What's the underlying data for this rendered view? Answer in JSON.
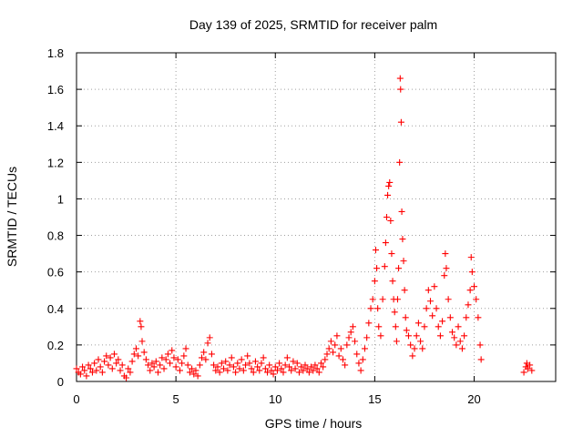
{
  "chart_data": {
    "type": "scatter",
    "title": "Day 139 of 2025, SRMTID for receiver palm",
    "xlabel": "GPS time / hours",
    "ylabel": "SRMTID / TECUs",
    "xlim": [
      0,
      24.1
    ],
    "ylim": [
      0,
      1.8
    ],
    "xticks": [
      0,
      5,
      10,
      15,
      20
    ],
    "xtick_labels": [
      "0",
      "5",
      "10",
      "15",
      "20"
    ],
    "yticks": [
      0,
      0.2,
      0.4,
      0.6,
      0.8,
      1.0,
      1.2,
      1.4,
      1.6,
      1.8
    ],
    "ytick_labels": [
      "0",
      "0.2",
      "0.4",
      "0.6",
      "0.8",
      "1",
      "1.2",
      "1.4",
      "1.6",
      "1.8"
    ],
    "grid": true,
    "marker": "+",
    "color": "#ff0000",
    "series": [
      {
        "name": "SRMTID",
        "points": [
          [
            0.0,
            0.07
          ],
          [
            0.1,
            0.05
          ],
          [
            0.2,
            0.04
          ],
          [
            0.3,
            0.08
          ],
          [
            0.4,
            0.06
          ],
          [
            0.5,
            0.03
          ],
          [
            0.6,
            0.09
          ],
          [
            0.7,
            0.07
          ],
          [
            0.8,
            0.05
          ],
          [
            0.9,
            0.1
          ],
          [
            1.0,
            0.06
          ],
          [
            1.1,
            0.12
          ],
          [
            1.2,
            0.08
          ],
          [
            1.3,
            0.05
          ],
          [
            1.4,
            0.11
          ],
          [
            1.5,
            0.14
          ],
          [
            1.6,
            0.09
          ],
          [
            1.7,
            0.13
          ],
          [
            1.8,
            0.07
          ],
          [
            1.9,
            0.15
          ],
          [
            2.0,
            0.1
          ],
          [
            2.1,
            0.12
          ],
          [
            2.2,
            0.06
          ],
          [
            2.3,
            0.09
          ],
          [
            2.4,
            0.03
          ],
          [
            2.5,
            0.02
          ],
          [
            2.6,
            0.07
          ],
          [
            2.7,
            0.05
          ],
          [
            2.8,
            0.11
          ],
          [
            2.9,
            0.15
          ],
          [
            3.0,
            0.18
          ],
          [
            3.1,
            0.14
          ],
          [
            3.2,
            0.33
          ],
          [
            3.25,
            0.3
          ],
          [
            3.3,
            0.22
          ],
          [
            3.4,
            0.16
          ],
          [
            3.5,
            0.12
          ],
          [
            3.6,
            0.09
          ],
          [
            3.7,
            0.06
          ],
          [
            3.8,
            0.1
          ],
          [
            3.9,
            0.08
          ],
          [
            4.0,
            0.11
          ],
          [
            4.1,
            0.05
          ],
          [
            4.2,
            0.09
          ],
          [
            4.3,
            0.13
          ],
          [
            4.4,
            0.07
          ],
          [
            4.5,
            0.12
          ],
          [
            4.6,
            0.15
          ],
          [
            4.7,
            0.1
          ],
          [
            4.8,
            0.17
          ],
          [
            4.9,
            0.13
          ],
          [
            5.0,
            0.08
          ],
          [
            5.1,
            0.12
          ],
          [
            5.2,
            0.06
          ],
          [
            5.3,
            0.1
          ],
          [
            5.4,
            0.14
          ],
          [
            5.5,
            0.18
          ],
          [
            5.6,
            0.09
          ],
          [
            5.7,
            0.05
          ],
          [
            5.8,
            0.07
          ],
          [
            5.9,
            0.04
          ],
          [
            6.0,
            0.06
          ],
          [
            6.1,
            0.03
          ],
          [
            6.2,
            0.09
          ],
          [
            6.3,
            0.13
          ],
          [
            6.4,
            0.16
          ],
          [
            6.5,
            0.12
          ],
          [
            6.6,
            0.21
          ],
          [
            6.7,
            0.24
          ],
          [
            6.8,
            0.15
          ],
          [
            6.9,
            0.09
          ],
          [
            7.0,
            0.06
          ],
          [
            7.1,
            0.08
          ],
          [
            7.2,
            0.05
          ],
          [
            7.3,
            0.1
          ],
          [
            7.4,
            0.07
          ],
          [
            7.5,
            0.11
          ],
          [
            7.6,
            0.06
          ],
          [
            7.7,
            0.09
          ],
          [
            7.8,
            0.13
          ],
          [
            7.9,
            0.08
          ],
          [
            8.0,
            0.05
          ],
          [
            8.1,
            0.1
          ],
          [
            8.2,
            0.07
          ],
          [
            8.3,
            0.12
          ],
          [
            8.4,
            0.06
          ],
          [
            8.5,
            0.09
          ],
          [
            8.6,
            0.14
          ],
          [
            8.7,
            0.1
          ],
          [
            8.8,
            0.07
          ],
          [
            8.9,
            0.05
          ],
          [
            9.0,
            0.11
          ],
          [
            9.1,
            0.08
          ],
          [
            9.2,
            0.06
          ],
          [
            9.3,
            0.1
          ],
          [
            9.4,
            0.13
          ],
          [
            9.5,
            0.07
          ],
          [
            9.6,
            0.05
          ],
          [
            9.7,
            0.09
          ],
          [
            9.8,
            0.06
          ],
          [
            9.9,
            0.04
          ],
          [
            10.0,
            0.08
          ],
          [
            10.1,
            0.06
          ],
          [
            10.2,
            0.1
          ],
          [
            10.3,
            0.07
          ],
          [
            10.4,
            0.05
          ],
          [
            10.5,
            0.09
          ],
          [
            10.6,
            0.13
          ],
          [
            10.7,
            0.08
          ],
          [
            10.8,
            0.06
          ],
          [
            10.9,
            0.11
          ],
          [
            11.0,
            0.07
          ],
          [
            11.1,
            0.1
          ],
          [
            11.2,
            0.05
          ],
          [
            11.3,
            0.08
          ],
          [
            11.4,
            0.06
          ],
          [
            11.5,
            0.09
          ],
          [
            11.6,
            0.07
          ],
          [
            11.7,
            0.05
          ],
          [
            11.8,
            0.08
          ],
          [
            11.9,
            0.06
          ],
          [
            12.0,
            0.09
          ],
          [
            12.1,
            0.07
          ],
          [
            12.2,
            0.05
          ],
          [
            12.3,
            0.1
          ],
          [
            12.4,
            0.08
          ],
          [
            12.5,
            0.12
          ],
          [
            12.6,
            0.15
          ],
          [
            12.7,
            0.18
          ],
          [
            12.8,
            0.22
          ],
          [
            12.9,
            0.16
          ],
          [
            13.0,
            0.2
          ],
          [
            13.1,
            0.25
          ],
          [
            13.2,
            0.14
          ],
          [
            13.3,
            0.18
          ],
          [
            13.4,
            0.12
          ],
          [
            13.5,
            0.09
          ],
          [
            13.6,
            0.2
          ],
          [
            13.7,
            0.24
          ],
          [
            13.8,
            0.27
          ],
          [
            13.9,
            0.3
          ],
          [
            14.0,
            0.22
          ],
          [
            14.1,
            0.15
          ],
          [
            14.2,
            0.1
          ],
          [
            14.3,
            0.06
          ],
          [
            14.4,
            0.12
          ],
          [
            14.5,
            0.18
          ],
          [
            14.6,
            0.24
          ],
          [
            14.7,
            0.32
          ],
          [
            14.8,
            0.4
          ],
          [
            14.9,
            0.45
          ],
          [
            15.0,
            0.55
          ],
          [
            15.05,
            0.72
          ],
          [
            15.1,
            0.62
          ],
          [
            15.15,
            0.4
          ],
          [
            15.2,
            0.3
          ],
          [
            15.3,
            0.25
          ],
          [
            15.4,
            0.45
          ],
          [
            15.5,
            0.63
          ],
          [
            15.55,
            0.76
          ],
          [
            15.6,
            0.9
          ],
          [
            15.65,
            1.02
          ],
          [
            15.7,
            1.07
          ],
          [
            15.75,
            1.09
          ],
          [
            15.8,
            0.88
          ],
          [
            15.85,
            0.7
          ],
          [
            15.9,
            0.55
          ],
          [
            15.95,
            0.45
          ],
          [
            16.0,
            0.38
          ],
          [
            16.05,
            0.3
          ],
          [
            16.1,
            0.22
          ],
          [
            16.15,
            0.45
          ],
          [
            16.2,
            0.62
          ],
          [
            16.25,
            1.2
          ],
          [
            16.28,
            1.66
          ],
          [
            16.3,
            1.6
          ],
          [
            16.33,
            1.42
          ],
          [
            16.36,
            0.93
          ],
          [
            16.4,
            0.78
          ],
          [
            16.45,
            0.66
          ],
          [
            16.5,
            0.5
          ],
          [
            16.55,
            0.35
          ],
          [
            16.6,
            0.28
          ],
          [
            16.7,
            0.25
          ],
          [
            16.8,
            0.2
          ],
          [
            16.9,
            0.14
          ],
          [
            17.0,
            0.18
          ],
          [
            17.1,
            0.25
          ],
          [
            17.2,
            0.32
          ],
          [
            17.3,
            0.22
          ],
          [
            17.4,
            0.18
          ],
          [
            17.5,
            0.3
          ],
          [
            17.6,
            0.4
          ],
          [
            17.7,
            0.5
          ],
          [
            17.8,
            0.44
          ],
          [
            17.9,
            0.36
          ],
          [
            18.0,
            0.52
          ],
          [
            18.1,
            0.4
          ],
          [
            18.2,
            0.3
          ],
          [
            18.3,
            0.25
          ],
          [
            18.4,
            0.33
          ],
          [
            18.5,
            0.58
          ],
          [
            18.55,
            0.7
          ],
          [
            18.6,
            0.62
          ],
          [
            18.7,
            0.45
          ],
          [
            18.8,
            0.35
          ],
          [
            18.9,
            0.27
          ],
          [
            19.0,
            0.24
          ],
          [
            19.1,
            0.2
          ],
          [
            19.2,
            0.3
          ],
          [
            19.3,
            0.22
          ],
          [
            19.4,
            0.18
          ],
          [
            19.5,
            0.25
          ],
          [
            19.6,
            0.35
          ],
          [
            19.7,
            0.42
          ],
          [
            19.8,
            0.5
          ],
          [
            19.85,
            0.68
          ],
          [
            19.9,
            0.6
          ],
          [
            20.0,
            0.52
          ],
          [
            20.1,
            0.45
          ],
          [
            20.2,
            0.35
          ],
          [
            20.3,
            0.2
          ],
          [
            20.35,
            0.12
          ],
          [
            22.5,
            0.05
          ],
          [
            22.6,
            0.08
          ],
          [
            22.65,
            0.1
          ],
          [
            22.7,
            0.07
          ],
          [
            22.8,
            0.09
          ],
          [
            22.9,
            0.06
          ]
        ]
      }
    ]
  }
}
